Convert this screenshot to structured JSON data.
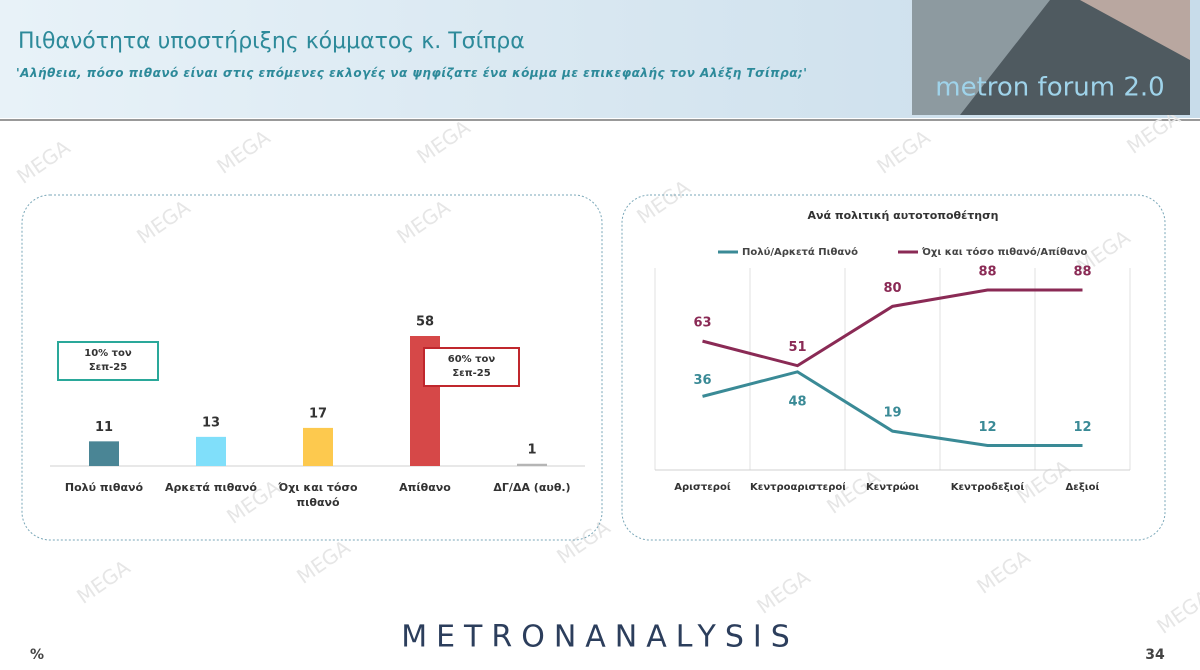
{
  "header": {
    "title": "Πιθανότητα υποστήριξης κόμματος κ. Τσίπρα",
    "subtitle": "'Αλήθεια, πόσο πιθανό είναι στις επόμενες εκλογές να ψηφίζατε ένα κόμμα με επικεφαλής τον Αλέξη Τσίπρα;'",
    "logo": "metron forum 2.0"
  },
  "watermark": "MEGA",
  "chart_data": [
    {
      "type": "bar",
      "categories": [
        "Πολύ πιθανό",
        "Αρκετά πιθανό",
        "Όχι και τόσο πιθανό",
        "Απίθανο",
        "ΔΓ/ΔΑ (αυθ.)"
      ],
      "values": [
        11,
        13,
        17,
        58,
        1
      ],
      "colors": [
        "#4a8595",
        "#80dffa",
        "#fdc94e",
        "#d64848",
        "#b5b5b5"
      ],
      "annotations": [
        {
          "text": "10% τον Σεπ-25",
          "color": "#2aa89a"
        },
        {
          "text": "60% τον Σεπ-25",
          "color": "#c0272d"
        }
      ]
    },
    {
      "type": "line",
      "title": "Ανά πολιτική αυτοτοποθέτηση",
      "categories": [
        "Αριστεροί",
        "Κεντροαριστεροί",
        "Κεντρώοι",
        "Κεντροδεξιοί",
        "Δεξιοί"
      ],
      "series": [
        {
          "name": "Πολύ/Αρκετά Πιθανό",
          "color": "#3a8a96",
          "values": [
            36,
            48,
            19,
            12,
            12
          ]
        },
        {
          "name": "Όχι και τόσο πιθανό/Απίθανο",
          "color": "#8a2a55",
          "values": [
            63,
            51,
            80,
            88,
            88
          ]
        }
      ],
      "grid": true
    }
  ],
  "footer": {
    "unit": "%",
    "brand": "METRONANALYSIS",
    "page": "34"
  }
}
